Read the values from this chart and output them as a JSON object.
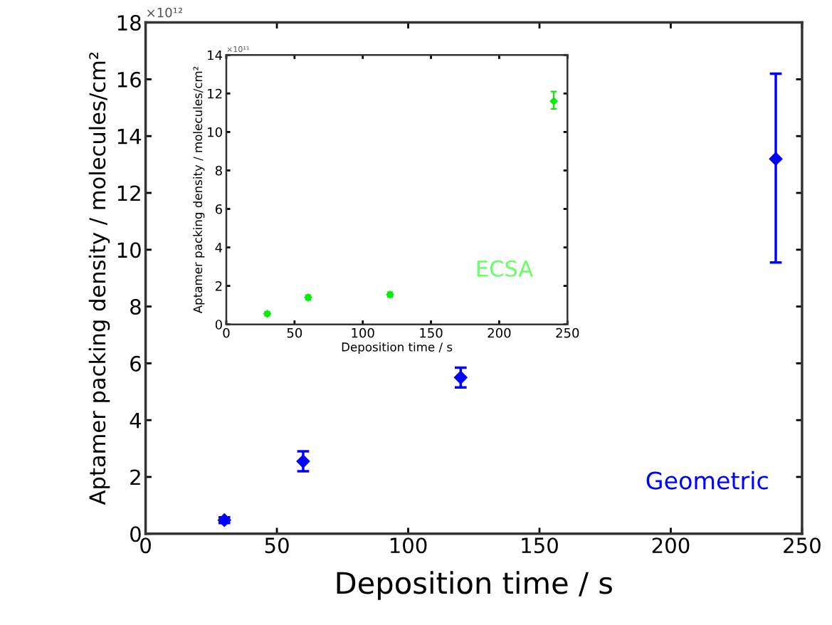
{
  "chart_data": [
    {
      "type": "scatter",
      "xlabel": "Deposition time / s",
      "ylabel": "Aptamer packing density / molecules/cm²",
      "annotations": [
        "×10¹²"
      ],
      "x": [
        30,
        60,
        120,
        240
      ],
      "xlim": [
        0,
        250
      ],
      "xticks": [
        0,
        50,
        100,
        150,
        200,
        250
      ],
      "ylim": [
        0,
        18
      ],
      "yticks": [
        0,
        2,
        4,
        6,
        8,
        10,
        12,
        14,
        16,
        18
      ],
      "marker": "diamond",
      "grid": false,
      "series": [
        {
          "name": "Geometric",
          "color": "#0000ff",
          "values": [
            0.48,
            2.55,
            5.5,
            13.2
          ],
          "errors": [
            0.1,
            0.35,
            0.35,
            [
              9.55,
              16.2
            ]
          ]
        }
      ]
    },
    {
      "type": "scatter",
      "xlabel": "Deposition time / s",
      "ylabel": "Aptamer packing density / molecules/cm²",
      "annotations": [
        "×10¹¹"
      ],
      "x": [
        30,
        60,
        120,
        240
      ],
      "xlim": [
        0,
        250
      ],
      "xticks": [
        0,
        50,
        100,
        150,
        200,
        250
      ],
      "ylim": [
        0,
        14
      ],
      "yticks": [
        0,
        2,
        4,
        6,
        8,
        10,
        12,
        14
      ],
      "marker": "diamond",
      "grid": false,
      "series": [
        {
          "name": "ECSA",
          "color": "#00ee00",
          "values": [
            0.55,
            1.4,
            1.55,
            11.6
          ],
          "errors": [
            0.1,
            0.12,
            0.12,
            [
              11.2,
              12.1
            ]
          ]
        }
      ]
    }
  ]
}
